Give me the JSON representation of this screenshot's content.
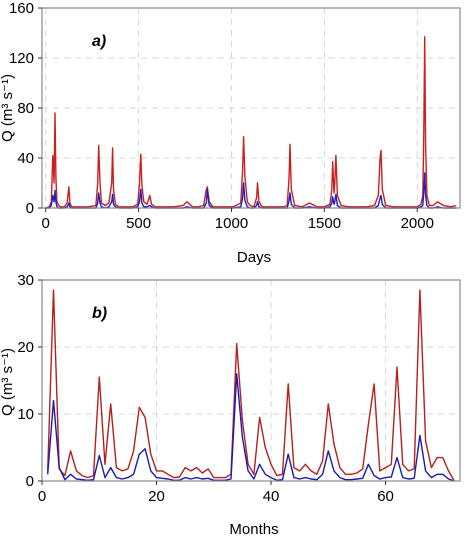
{
  "chart_data": [
    {
      "type": "line",
      "panel_label": "a)",
      "xlabel": "Days",
      "ylabel": "Q (m³ s⁻¹)",
      "xlim": [
        -20,
        2230
      ],
      "ylim": [
        0,
        160
      ],
      "xticks": [
        0,
        500,
        1000,
        1500,
        2000
      ],
      "yticks": [
        0,
        40,
        80,
        120,
        160
      ],
      "grid": true,
      "x": [
        0,
        20,
        30,
        38,
        45,
        50,
        55,
        60,
        70,
        80,
        100,
        115,
        125,
        130,
        140,
        180,
        230,
        270,
        280,
        285,
        292,
        300,
        320,
        340,
        355,
        360,
        365,
        375,
        395,
        430,
        470,
        495,
        505,
        512,
        518,
        528,
        545,
        560,
        570,
        590,
        640,
        690,
        740,
        760,
        790,
        820,
        850,
        865,
        870,
        880,
        900,
        960,
        1010,
        1050,
        1060,
        1065,
        1072,
        1085,
        1100,
        1120,
        1135,
        1140,
        1148,
        1165,
        1195,
        1240,
        1280,
        1300,
        1310,
        1315,
        1322,
        1340,
        1380,
        1420,
        1460,
        1500,
        1530,
        1540,
        1545,
        1552,
        1556,
        1562,
        1570,
        1590,
        1630,
        1680,
        1730,
        1770,
        1790,
        1800,
        1805,
        1812,
        1830,
        1870,
        1920,
        1960,
        2000,
        2020,
        2030,
        2035,
        2040,
        2045,
        2052,
        2065,
        2085,
        2110,
        2140,
        2180,
        2210
      ],
      "series": [
        {
          "color": "#cc1f1f",
          "values": [
            0,
            1,
            5,
            42,
            20,
            76,
            25,
            5,
            2,
            1,
            1,
            4,
            17,
            4,
            1,
            1,
            1,
            2,
            20,
            50,
            20,
            4,
            2,
            4,
            20,
            48,
            15,
            3,
            1,
            1,
            1,
            3,
            20,
            43,
            18,
            5,
            3,
            10,
            3,
            1,
            1,
            1,
            2,
            5,
            1,
            1,
            2,
            15,
            17,
            5,
            1,
            1,
            1,
            4,
            30,
            57,
            25,
            5,
            2,
            1,
            8,
            20,
            5,
            1,
            1,
            1,
            1,
            2,
            25,
            51,
            15,
            2,
            1,
            4,
            1,
            1,
            3,
            15,
            37,
            12,
            20,
            42,
            10,
            2,
            1,
            1,
            1,
            2,
            10,
            40,
            46,
            15,
            2,
            1,
            1,
            1,
            1,
            3,
            10,
            60,
            137,
            50,
            10,
            2,
            2,
            5,
            2,
            1,
            2
          ]
        },
        {
          "color": "#1f1fbf",
          "values": [
            0,
            0,
            2,
            10,
            5,
            14,
            5,
            1,
            0,
            0,
            0,
            1,
            4,
            1,
            0,
            0,
            0,
            0,
            4,
            12,
            4,
            1,
            0,
            1,
            5,
            11,
            3,
            1,
            0,
            0,
            0,
            1,
            5,
            15,
            4,
            1,
            1,
            2,
            1,
            0,
            0,
            0,
            0,
            1,
            0,
            0,
            0,
            4,
            15,
            2,
            0,
            0,
            0,
            1,
            8,
            20,
            6,
            1,
            0,
            0,
            2,
            5,
            1,
            0,
            0,
            0,
            0,
            0,
            6,
            12,
            3,
            0,
            0,
            1,
            0,
            0,
            1,
            4,
            9,
            3,
            5,
            11,
            2,
            0,
            0,
            0,
            0,
            0,
            2,
            8,
            10,
            3,
            0,
            0,
            0,
            0,
            0,
            1,
            2,
            13,
            28,
            10,
            2,
            0,
            0,
            1,
            0,
            0,
            0
          ]
        }
      ]
    },
    {
      "type": "line",
      "panel_label": "b)",
      "xlabel": "Months",
      "ylabel": "Q (m³ s⁻¹)",
      "xlim": [
        0,
        73
      ],
      "ylim": [
        0,
        30
      ],
      "xticks": [
        0,
        20,
        40,
        60
      ],
      "yticks": [
        0,
        10,
        20,
        30
      ],
      "grid": true,
      "x": [
        1,
        2,
        3,
        4,
        5,
        6,
        7,
        8,
        9,
        10,
        11,
        12,
        13,
        14,
        15,
        16,
        17,
        18,
        19,
        20,
        21,
        22,
        23,
        24,
        25,
        26,
        27,
        28,
        29,
        30,
        31,
        32,
        33,
        34,
        35,
        36,
        37,
        38,
        39,
        40,
        41,
        42,
        43,
        44,
        45,
        46,
        47,
        48,
        49,
        50,
        51,
        52,
        53,
        54,
        55,
        56,
        57,
        58,
        59,
        60,
        61,
        62,
        63,
        64,
        65,
        66,
        67,
        68,
        69,
        70,
        71,
        72
      ],
      "series": [
        {
          "color": "#b52020",
          "values": [
            1.5,
            28.5,
            1.8,
            0.8,
            4.5,
            1.5,
            0.8,
            0.5,
            0.8,
            15.5,
            2.5,
            11.5,
            2.0,
            1.5,
            1.8,
            4.5,
            11.0,
            9.5,
            4.0,
            1.5,
            1.5,
            1.0,
            0.5,
            0.6,
            2.0,
            1.5,
            2.0,
            1.2,
            1.8,
            0.5,
            0.5,
            0.5,
            1.0,
            20.5,
            9.0,
            2.5,
            1.0,
            9.5,
            5.0,
            2.5,
            0.8,
            1.0,
            14.5,
            2.0,
            1.5,
            2.5,
            1.5,
            1.0,
            3.0,
            11.5,
            5.5,
            2.0,
            1.0,
            1.0,
            1.2,
            1.8,
            8.5,
            14.5,
            1.5,
            2.0,
            2.5,
            17.0,
            2.5,
            1.5,
            1.8,
            28.5,
            6.0,
            2.0,
            3.5,
            3.5,
            1.5,
            0.0
          ]
        },
        {
          "color": "#1a1ab5",
          "values": [
            1.0,
            12.0,
            2.0,
            0.2,
            1.0,
            0.3,
            0.2,
            0.1,
            0.2,
            3.8,
            0.5,
            2.0,
            0.5,
            0.3,
            0.5,
            1.0,
            4.0,
            4.8,
            1.5,
            0.5,
            0.4,
            0.3,
            0.1,
            0.1,
            0.5,
            0.3,
            0.5,
            0.3,
            0.4,
            0.1,
            0.1,
            0.1,
            0.3,
            16.0,
            6.5,
            1.5,
            0.3,
            2.5,
            1.0,
            0.5,
            0.1,
            0.2,
            4.0,
            0.5,
            0.3,
            0.5,
            0.3,
            0.2,
            1.0,
            4.5,
            1.5,
            0.5,
            0.2,
            0.2,
            0.3,
            0.4,
            2.5,
            0.8,
            0.3,
            0.5,
            0.6,
            3.5,
            0.5,
            0.3,
            0.4,
            6.8,
            1.5,
            0.5,
            1.0,
            1.0,
            0.3,
            0.0
          ]
        }
      ]
    }
  ]
}
